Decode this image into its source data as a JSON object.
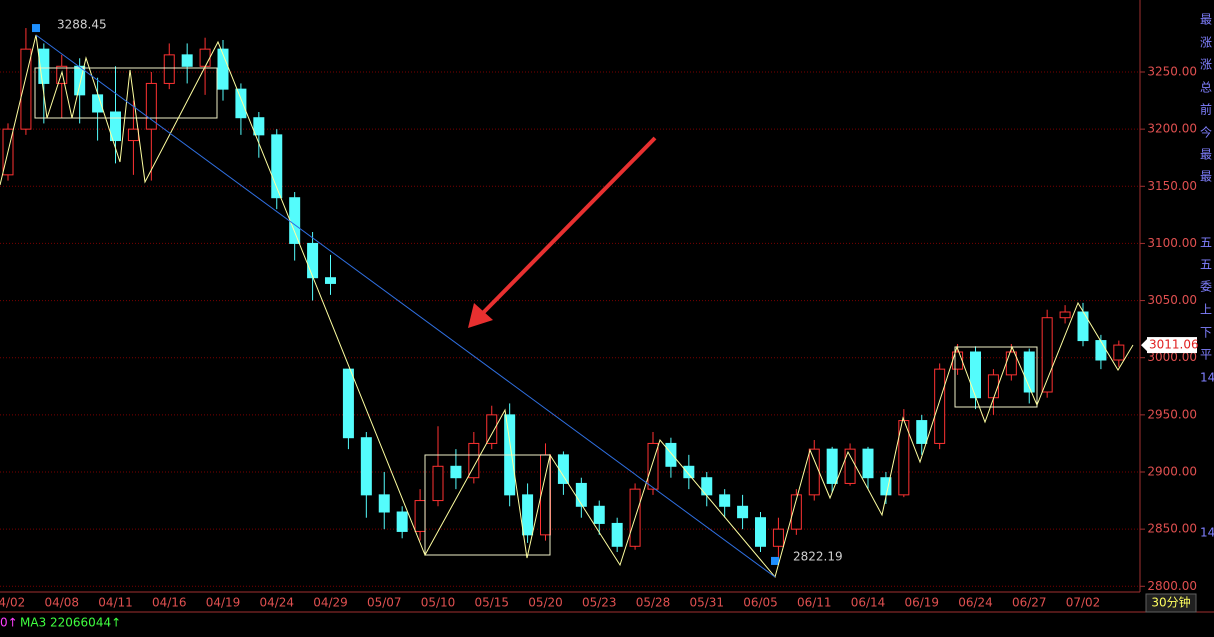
{
  "chart_data": {
    "type": "candlestick",
    "categories": [
      "04/02",
      null,
      null,
      "04/08",
      null,
      null,
      "04/11",
      null,
      null,
      "04/16",
      null,
      null,
      "04/19",
      null,
      null,
      "04/24",
      null,
      null,
      "04/29",
      null,
      null,
      "05/07",
      null,
      null,
      "05/10",
      null,
      null,
      "05/15",
      null,
      null,
      "05/20",
      null,
      null,
      "05/23",
      null,
      null,
      "05/28",
      null,
      null,
      "05/31",
      null,
      null,
      "06/05",
      null,
      null,
      "06/11",
      null,
      null,
      "06/14",
      null,
      null,
      "06/19",
      null,
      null,
      "06/24",
      null,
      null,
      "06/27",
      null,
      null,
      "07/02",
      null,
      null
    ],
    "open": [
      3160,
      3200,
      3270,
      3240,
      3255,
      3230,
      3215,
      3190,
      3200,
      3240,
      3265,
      3255,
      3270,
      3235,
      3210,
      3195,
      3140,
      3100,
      3070,
      2990,
      2930,
      2880,
      2865,
      2848,
      2875,
      2905,
      2895,
      2925,
      2950,
      2880,
      2845,
      2915,
      2890,
      2870,
      2855,
      2835,
      2885,
      2925,
      2905,
      2895,
      2880,
      2870,
      2860,
      2835,
      2850,
      2880,
      2920,
      2890,
      2920,
      2895,
      2880,
      2945,
      2925,
      2990,
      3005,
      2965,
      2985,
      3005,
      2970,
      3035,
      3040,
      3015,
      2998
    ],
    "high": [
      3205,
      3288.45,
      3275,
      3265,
      3262,
      3245,
      3255,
      3225,
      3250,
      3275,
      3275,
      3280,
      3278,
      3240,
      3215,
      3200,
      3145,
      3110,
      3090,
      2990,
      2935,
      2900,
      2870,
      2885,
      2940,
      2920,
      2935,
      2958,
      2960,
      2890,
      2925,
      2918,
      2895,
      2875,
      2860,
      2890,
      2935,
      2930,
      2915,
      2900,
      2885,
      2880,
      2865,
      2860,
      2885,
      2928,
      2922,
      2925,
      2922,
      2900,
      2955,
      2950,
      2995,
      3012,
      3010,
      2990,
      3012,
      3008,
      3042,
      3046,
      3048,
      3020,
      3015
    ],
    "low": [
      3155,
      3195,
      3205,
      3210,
      3205,
      3190,
      3170,
      3160,
      3155,
      3235,
      3240,
      3230,
      3225,
      3195,
      3175,
      3130,
      3085,
      3050,
      3055,
      2920,
      2860,
      2850,
      2842,
      2840,
      2870,
      2885,
      2890,
      2920,
      2870,
      2838,
      2840,
      2880,
      2860,
      2845,
      2830,
      2832,
      2880,
      2895,
      2885,
      2870,
      2860,
      2850,
      2830,
      2822.19,
      2845,
      2875,
      2882,
      2888,
      2885,
      2872,
      2878,
      2915,
      2920,
      2985,
      2955,
      2950,
      2980,
      2960,
      2965,
      3030,
      3010,
      2990,
      2992
    ],
    "close": [
      3200,
      3270,
      3240,
      3255,
      3230,
      3215,
      3190,
      3200,
      3240,
      3265,
      3255,
      3270,
      3235,
      3210,
      3195,
      3140,
      3100,
      3070,
      3065,
      2930,
      2880,
      2865,
      2848,
      2875,
      2905,
      2895,
      2925,
      2950,
      2880,
      2845,
      2915,
      2890,
      2870,
      2855,
      2835,
      2885,
      2925,
      2905,
      2895,
      2880,
      2870,
      2860,
      2835,
      2850,
      2880,
      2920,
      2890,
      2920,
      2895,
      2880,
      2945,
      2925,
      2990,
      3005,
      2965,
      2985,
      3005,
      2970,
      3035,
      3040,
      3015,
      2998,
      3011.06
    ],
    "up_color": "#ff3232",
    "down_color": "#54fcfc",
    "ylim": [
      2795,
      3313
    ],
    "yticks": [
      {
        "value": 2800,
        "label": "2800.00"
      },
      {
        "value": 2850,
        "label": "2850.00"
      },
      {
        "value": 2900,
        "label": "2900.00"
      },
      {
        "value": 2950,
        "label": "2950.00"
      },
      {
        "value": 3000,
        "label": "3000.00"
      },
      {
        "value": 3050,
        "label": "3050.00"
      },
      {
        "value": 3100,
        "label": "3100.00"
      },
      {
        "value": 3150,
        "label": "3150.00"
      },
      {
        "value": 3200,
        "label": "3200.00"
      },
      {
        "value": 3250,
        "label": "3250.00"
      }
    ],
    "grid": true,
    "period": "30分钟",
    "indicator": "MA3 22066044↑",
    "indicator_prefix": "0↑",
    "side_labels": [
      "最",
      "涨",
      "涨",
      "总",
      "前",
      "今",
      "最",
      "最",
      "五",
      "五",
      "委",
      "上",
      "下",
      "平",
      "14",
      "14"
    ]
  }
}
